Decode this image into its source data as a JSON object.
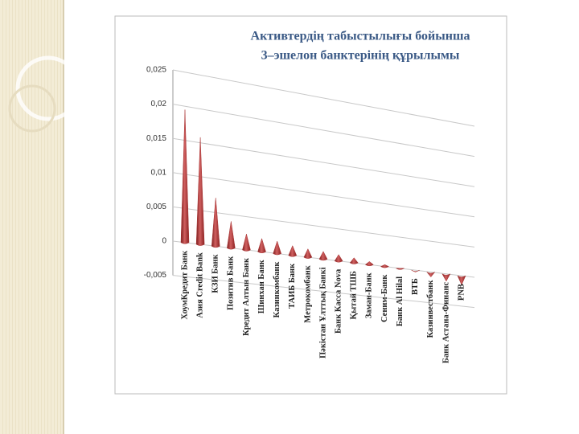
{
  "chart_data": {
    "type": "cone3d",
    "title": [
      "Активтердің табыстылығы бойынша",
      "3–эшелон банктерінің құрылымы"
    ],
    "categories": [
      "ХоумКредит Банк",
      "Азия Credit Bank",
      "КЗИ Банк",
      "Позитив Банк",
      "Кредит Алтын Банк",
      "Шинхан Банк",
      "Казинкомбанк",
      "ТАИБ Банк",
      "Метрокомбанк",
      "Пәкістан Ұлттық Банкі",
      "Банк Касса Nova",
      "Қытай ТШБ",
      "Заман-Банк",
      "Сеним-Банк",
      "Банк Al Hilal",
      "ВТБ",
      "Казинвестбанк",
      "Банк Астана-Финанс",
      "PNB"
    ],
    "values": [
      0.0195,
      0.0158,
      0.0072,
      0.004,
      0.0024,
      0.002,
      0.0019,
      0.0015,
      0.0013,
      0.0012,
      0.001,
      0.0008,
      0.0005,
      0.0003,
      0,
      -0.0003,
      -0.0008,
      -0.0012,
      -0.0015
    ],
    "color": "#a83232",
    "ylim": [
      -0.005,
      0.025
    ],
    "yticks": [
      {
        "value": -0.005,
        "label": "-0,005"
      },
      0,
      {
        "value": 0.005,
        "label": "0,005"
      },
      {
        "value": 0.01,
        "label": "0,01"
      },
      {
        "value": 0.015,
        "label": "0,015"
      },
      {
        "value": 0.02,
        "label": "0,02"
      },
      {
        "value": 0.025,
        "label": "0,025"
      }
    ],
    "grid": true
  }
}
